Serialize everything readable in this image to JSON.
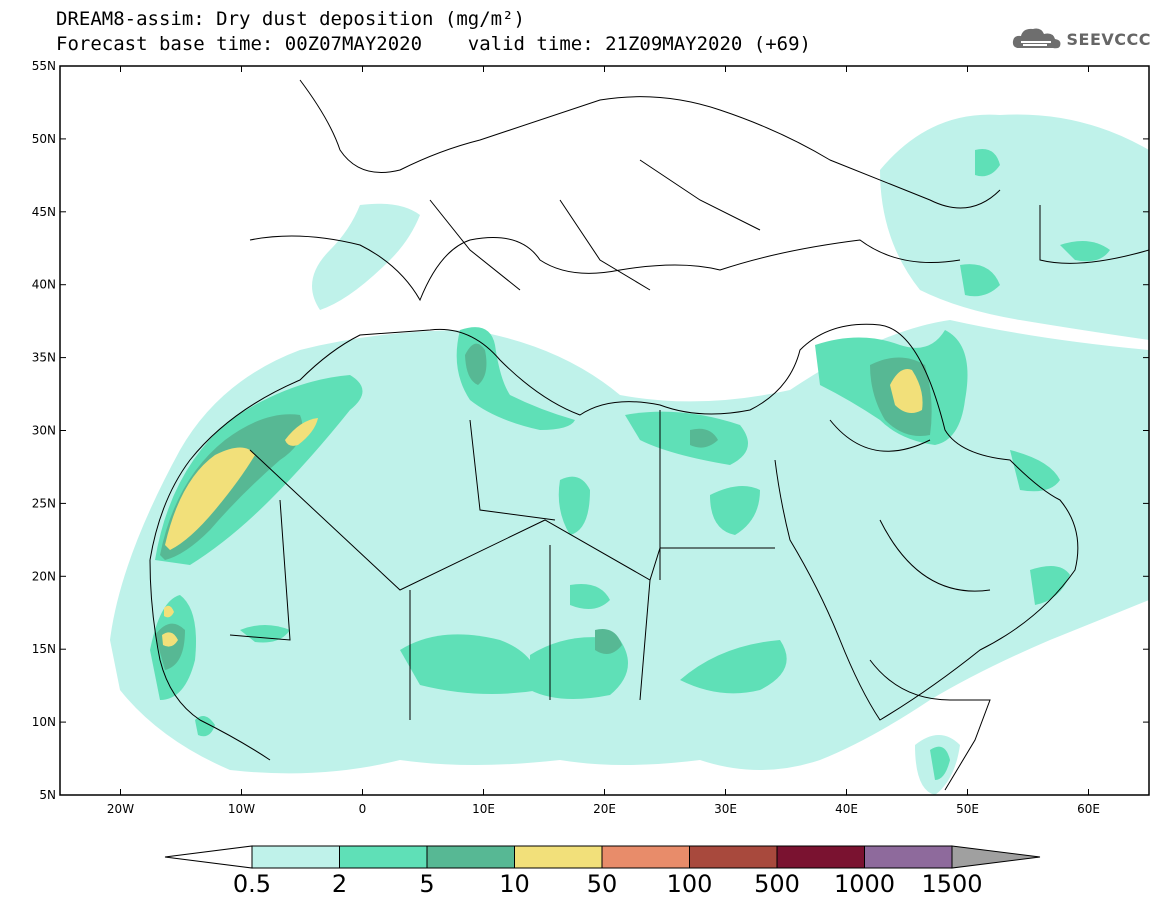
{
  "header": {
    "title_line1": "DREAM8-assim: Dry dust deposition (mg/m²)",
    "title_line2": "Forecast base time: 00Z07MAY2020    valid time: 21Z09MAY2020 (+69)",
    "logo_text": "SEEVCCC"
  },
  "map": {
    "lon_range": [
      -25,
      65
    ],
    "lat_range": [
      5,
      55
    ],
    "x_ticks": [
      "20W",
      "10W",
      "0",
      "10E",
      "20E",
      "30E",
      "40E",
      "50E",
      "60E"
    ],
    "x_tick_values": [
      -20,
      -10,
      0,
      10,
      20,
      30,
      40,
      50,
      60
    ],
    "y_ticks": [
      "5N",
      "10N",
      "15N",
      "20N",
      "25N",
      "30N",
      "35N",
      "40N",
      "45N",
      "50N",
      "55N"
    ],
    "y_tick_values": [
      5,
      10,
      15,
      20,
      25,
      30,
      35,
      40,
      45,
      50,
      55
    ]
  },
  "legend": {
    "labels": [
      "0.5",
      "2",
      "5",
      "10",
      "50",
      "100",
      "500",
      "1000",
      "1500"
    ],
    "colors": [
      "#bff2ea",
      "#5fe0b7",
      "#57b894",
      "#f2e07a",
      "#e88c6a",
      "#a8493d",
      "#7a1230",
      "#8e6a9c"
    ],
    "low_color": "#ffffff",
    "high_color": "#a0a0a0"
  }
}
